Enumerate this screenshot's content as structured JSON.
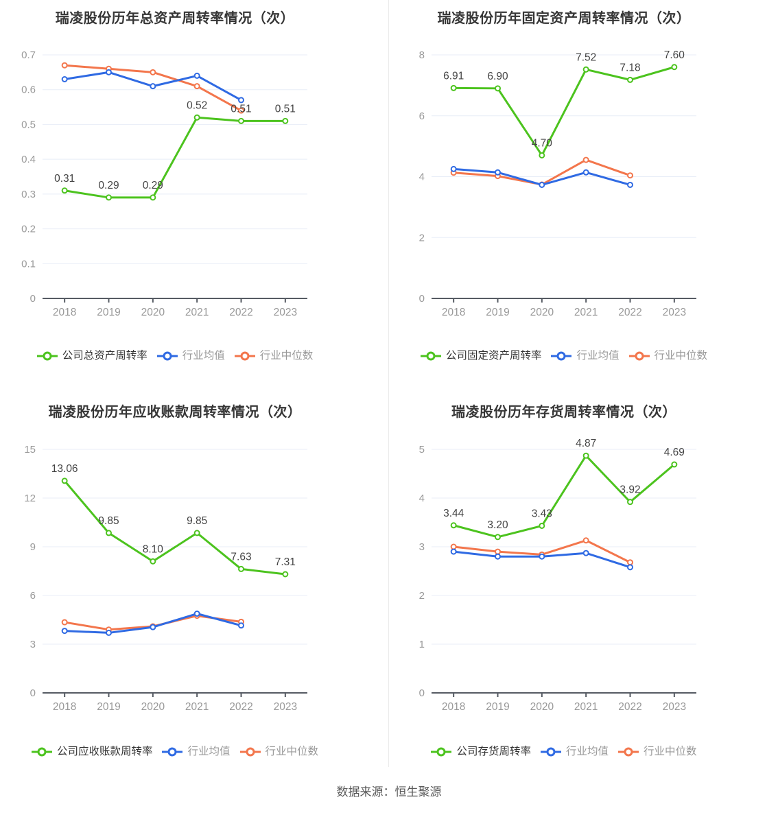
{
  "footer": {
    "source_label": "数据来源：恒生聚源"
  },
  "colors": {
    "company_green": "#4cc31e",
    "industry_avg_blue": "#2f6ae3",
    "industry_median_orange": "#f3764c",
    "grid": "#e8edf7",
    "axis": "#565b63",
    "tick_label": "#999999",
    "data_label": "#444444",
    "title": "#363636",
    "legend_primary_text": "#333333",
    "legend_dim_text": "#999999"
  },
  "chart_data": [
    {
      "type": "line",
      "title": "瑞凌股份历年总资产周转率情况（次）",
      "categories": [
        "2018",
        "2019",
        "2020",
        "2021",
        "2022",
        "2023"
      ],
      "ylim": [
        0,
        0.7
      ],
      "yticks": [
        0,
        0.1,
        0.2,
        0.3,
        0.4,
        0.5,
        0.6,
        0.7
      ],
      "ytick_labels": [
        "0",
        "0.1",
        "0.2",
        "0.3",
        "0.4",
        "0.5",
        "0.6",
        "0.7"
      ],
      "grid": true,
      "legend_position": "bottom",
      "series": [
        {
          "name": "公司总资产周转率",
          "color_key": "company_green",
          "values": [
            0.31,
            0.29,
            0.29,
            0.52,
            0.51,
            0.51
          ],
          "point_labels": [
            "0.31",
            "0.29",
            "0.29",
            "0.52",
            "0.51",
            "0.51"
          ]
        },
        {
          "name": "行业均值",
          "color_key": "industry_avg_blue",
          "values": [
            0.63,
            0.65,
            0.61,
            0.64,
            0.57,
            null
          ]
        },
        {
          "name": "行业中位数",
          "color_key": "industry_median_orange",
          "values": [
            0.67,
            0.66,
            0.65,
            0.61,
            0.54,
            null
          ]
        }
      ]
    },
    {
      "type": "line",
      "title": "瑞凌股份历年固定资产周转率情况（次）",
      "categories": [
        "2018",
        "2019",
        "2020",
        "2021",
        "2022",
        "2023"
      ],
      "ylim": [
        0,
        8
      ],
      "yticks": [
        0,
        2,
        4,
        6,
        8
      ],
      "ytick_labels": [
        "0",
        "2",
        "4",
        "6",
        "8"
      ],
      "grid": true,
      "legend_position": "bottom",
      "series": [
        {
          "name": "公司固定资产周转率",
          "color_key": "company_green",
          "values": [
            6.91,
            6.9,
            4.7,
            7.52,
            7.18,
            7.6
          ],
          "point_labels": [
            "6.91",
            "6.90",
            "4.70",
            "7.52",
            "7.18",
            "7.60"
          ]
        },
        {
          "name": "行业均值",
          "color_key": "industry_avg_blue",
          "values": [
            4.25,
            4.14,
            3.73,
            4.14,
            3.73,
            null
          ]
        },
        {
          "name": "行业中位数",
          "color_key": "industry_median_orange",
          "values": [
            4.13,
            4.02,
            3.74,
            4.55,
            4.04,
            null
          ]
        }
      ]
    },
    {
      "type": "line",
      "title": "瑞凌股份历年应收账款周转率情况（次）",
      "categories": [
        "2018",
        "2019",
        "2020",
        "2021",
        "2022",
        "2023"
      ],
      "ylim": [
        0,
        15
      ],
      "yticks": [
        0,
        3,
        6,
        9,
        12,
        15
      ],
      "ytick_labels": [
        "0",
        "3",
        "6",
        "9",
        "12",
        "15"
      ],
      "grid": true,
      "legend_position": "bottom",
      "series": [
        {
          "name": "公司应收账款周转率",
          "color_key": "company_green",
          "values": [
            13.06,
            9.85,
            8.1,
            9.85,
            7.63,
            7.31
          ],
          "point_labels": [
            "13.06",
            "9.85",
            "8.10",
            "9.85",
            "7.63",
            "7.31"
          ]
        },
        {
          "name": "行业均值",
          "color_key": "industry_avg_blue",
          "values": [
            3.82,
            3.7,
            4.05,
            4.88,
            4.15,
            null
          ]
        },
        {
          "name": "行业中位数",
          "color_key": "industry_median_orange",
          "values": [
            4.35,
            3.9,
            4.1,
            4.75,
            4.38,
            null
          ]
        }
      ]
    },
    {
      "type": "line",
      "title": "瑞凌股份历年存货周转率情况（次）",
      "categories": [
        "2018",
        "2019",
        "2020",
        "2021",
        "2022",
        "2023"
      ],
      "ylim": [
        0,
        5
      ],
      "yticks": [
        0,
        1,
        2,
        3,
        4,
        5
      ],
      "ytick_labels": [
        "0",
        "1",
        "2",
        "3",
        "4",
        "5"
      ],
      "grid": true,
      "legend_position": "bottom",
      "series": [
        {
          "name": "公司存货周转率",
          "color_key": "company_green",
          "values": [
            3.44,
            3.2,
            3.43,
            4.87,
            3.92,
            4.69
          ],
          "point_labels": [
            "3.44",
            "3.20",
            "3.43",
            "4.87",
            "3.92",
            "4.69"
          ]
        },
        {
          "name": "行业均值",
          "color_key": "industry_avg_blue",
          "values": [
            2.9,
            2.8,
            2.8,
            2.87,
            2.58,
            null
          ]
        },
        {
          "name": "行业中位数",
          "color_key": "industry_median_orange",
          "values": [
            3.0,
            2.9,
            2.84,
            3.13,
            2.68,
            null
          ]
        }
      ]
    }
  ]
}
